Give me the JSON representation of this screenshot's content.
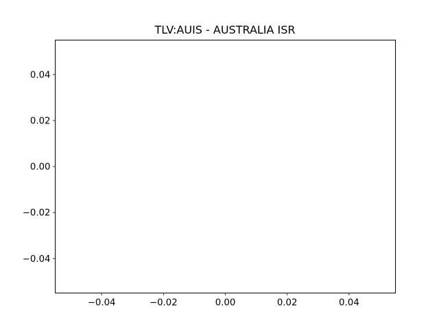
{
  "chart_data": {
    "type": "line",
    "title": "TLV:AUIS - AUSTRALIA ISR",
    "xlabel": "",
    "ylabel": "",
    "series": [],
    "xlim": [
      -0.055,
      0.055
    ],
    "ylim": [
      -0.055,
      0.055
    ],
    "x_ticks": [
      -0.04,
      -0.02,
      0.0,
      0.02,
      0.04
    ],
    "x_tick_labels": [
      "−0.04",
      "−0.02",
      "0.00",
      "0.02",
      "0.04"
    ],
    "y_ticks": [
      -0.04,
      -0.02,
      0.0,
      0.02,
      0.04
    ],
    "y_tick_labels": [
      "−0.04",
      "−0.02",
      "0.00",
      "0.02",
      "0.04"
    ],
    "grid": false,
    "legend": "none"
  }
}
